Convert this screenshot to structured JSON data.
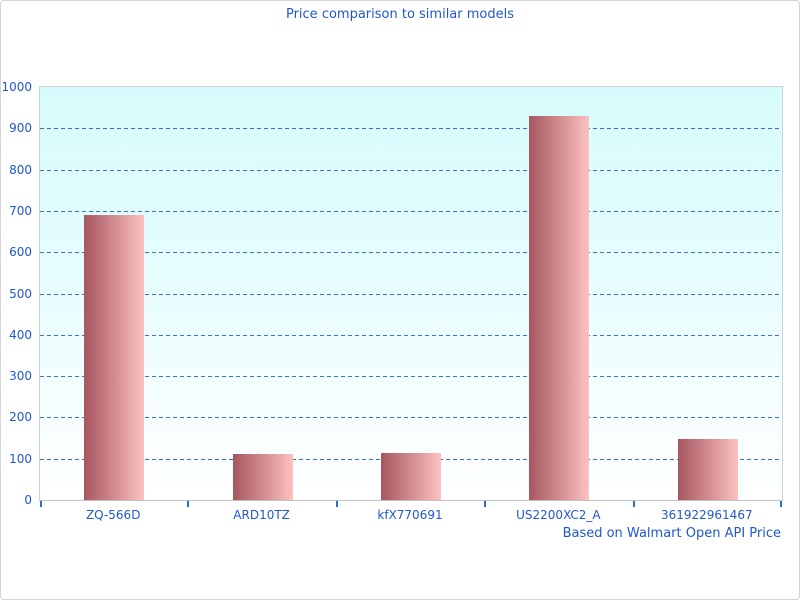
{
  "chart_data": {
    "type": "bar",
    "title": "Price comparison to similar models",
    "categories": [
      "ZQ-566D",
      "ARD10TZ",
      "kfX770691",
      "US2200XC2_A",
      "361922961467"
    ],
    "values": [
      690,
      112,
      115,
      930,
      148
    ],
    "xlabel": "",
    "ylabel": "",
    "ylim": [
      0,
      1000
    ],
    "ytick_step": 100,
    "ytick_labels": [
      "0",
      "100",
      "200",
      "300",
      "400",
      "500",
      "600",
      "700",
      "800",
      "900",
      "1000"
    ],
    "grid": "horizontal-dashed",
    "legend": "none",
    "annotation": "Based on Walmart Open API Price",
    "colors": {
      "bar_gradient_left": "#a6565f",
      "bar_gradient_right": "#fdc1c1",
      "plot_bg_top": "#d7fbfc",
      "plot_bg_bottom": "#ffffff",
      "gridline": "#3f6ec6",
      "text": "#2157cd",
      "axis_line": "#c4c4c4",
      "tick": "#2e6cc0"
    }
  }
}
